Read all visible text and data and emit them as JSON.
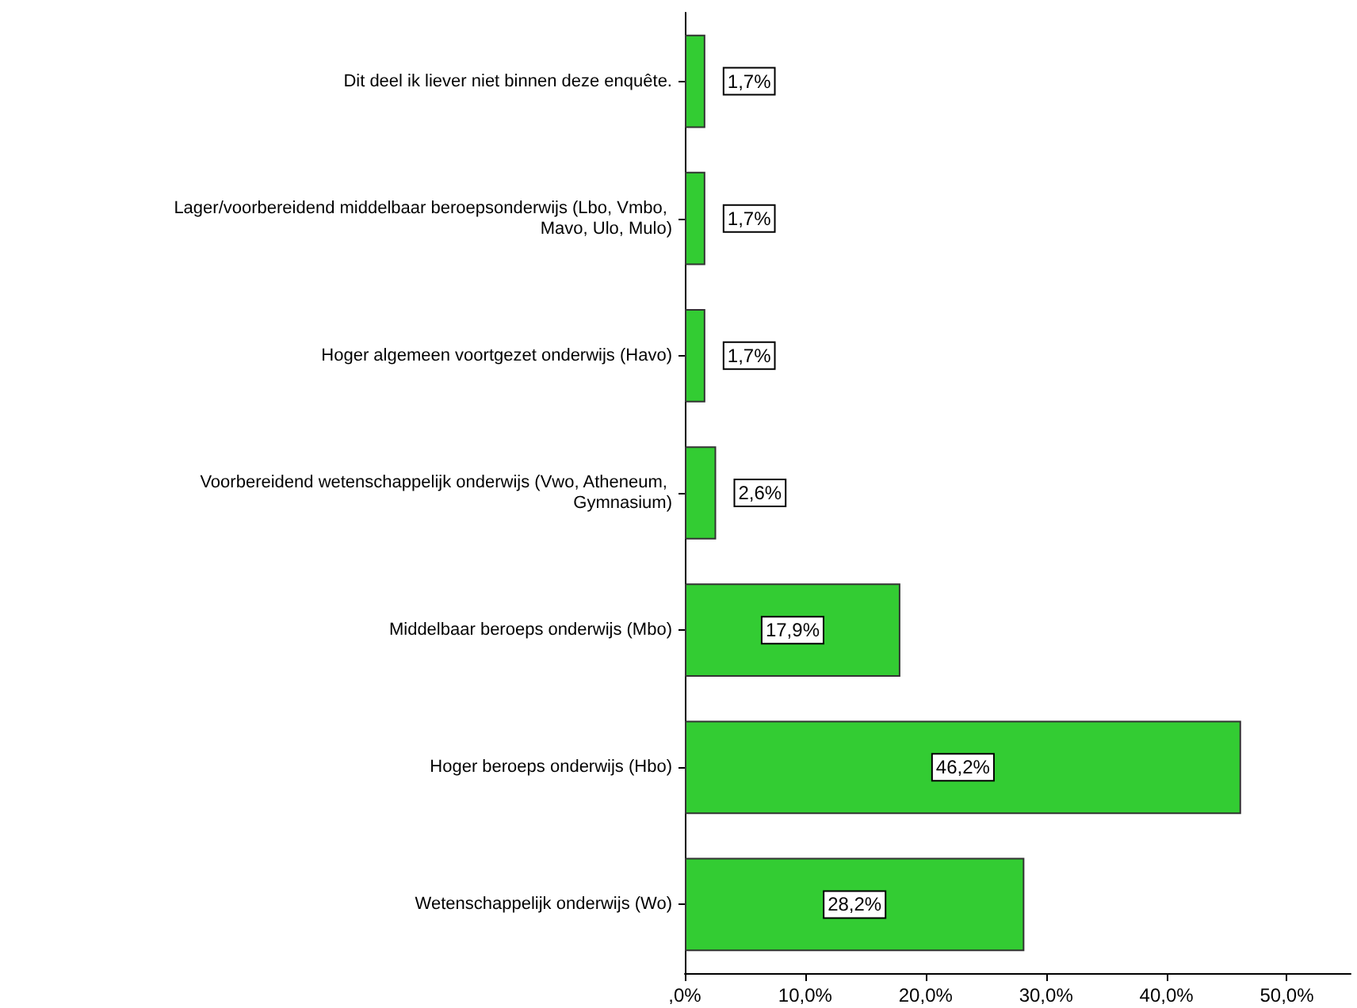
{
  "chart_data": {
    "type": "bar",
    "orientation": "horizontal",
    "categories": [
      "Dit deel ik liever niet binnen deze enquête.",
      "Lager/voorbereidend middelbaar beroepsonderwijs (Lbo, Vmbo, Mavo, Ulo, Mulo)",
      "Hoger algemeen voortgezet onderwijs (Havo)",
      "Voorbereidend wetenschappelijk onderwijs (Vwo, Atheneum, Gymnasium)",
      "Middelbaar beroeps onderwijs (Mbo)",
      "Hoger beroeps onderwijs (Hbo)",
      "Wetenschappelijk onderwijs (Wo)"
    ],
    "values": [
      1.7,
      1.7,
      1.7,
      2.6,
      17.9,
      46.2,
      28.2
    ],
    "value_labels": [
      "1,7%",
      "1,7%",
      "1,7%",
      "2,6%",
      "17,9%",
      "46,2%",
      "28,2%"
    ],
    "color": "#33cc33",
    "xlim": [
      0,
      55.3
    ],
    "xticks": [
      {
        "value": 0,
        "label": ",0%"
      },
      {
        "value": 10,
        "label": "10,0%"
      },
      {
        "value": 20,
        "label": "20,0%"
      },
      {
        "value": 30,
        "label": "30,0%"
      },
      {
        "value": 40,
        "label": "40,0%"
      },
      {
        "value": 50,
        "label": "50,0%"
      }
    ],
    "grid": false
  }
}
